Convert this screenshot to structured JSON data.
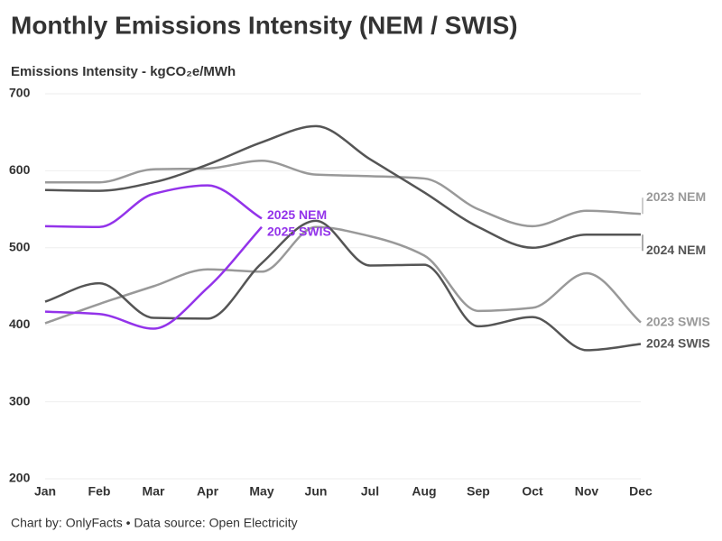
{
  "chart_data": {
    "type": "line",
    "title": "Monthly Emissions Intensity (NEM / SWIS)",
    "subtitle": "Emissions Intensity - kgCO₂e/MWh",
    "footer": "Chart by: OnlyFacts • Data source: Open Electricity",
    "categories": [
      "Jan",
      "Feb",
      "Mar",
      "Apr",
      "May",
      "Jun",
      "Jul",
      "Aug",
      "Sep",
      "Oct",
      "Nov",
      "Dec"
    ],
    "ylim": [
      200,
      700
    ],
    "yticks": [
      200,
      300,
      400,
      500,
      600,
      700
    ],
    "grid": true,
    "series": [
      {
        "name": "2023 NEM",
        "color": "#999999",
        "values": [
          585,
          585,
          602,
          603,
          613,
          595,
          593,
          590,
          550,
          528,
          548,
          544
        ]
      },
      {
        "name": "2024 NEM",
        "color": "#555555",
        "values": [
          575,
          574,
          585,
          608,
          637,
          658,
          615,
          572,
          527,
          500,
          517,
          517
        ]
      },
      {
        "name": "2023 SWIS",
        "color": "#999999",
        "values": [
          402,
          427,
          450,
          472,
          469,
          527,
          515,
          490,
          418,
          422,
          467,
          403
        ]
      },
      {
        "name": "2024 SWIS",
        "color": "#555555",
        "values": [
          430,
          454,
          409,
          408,
          480,
          535,
          477,
          478,
          398,
          410,
          367,
          375
        ]
      },
      {
        "name": "2025 NEM",
        "color": "#9333ea",
        "values": [
          528,
          527,
          570,
          581,
          538,
          null,
          null,
          null,
          null,
          null,
          null,
          null
        ]
      },
      {
        "name": "2025 SWIS",
        "color": "#9333ea",
        "values": [
          417,
          414,
          395,
          448,
          527,
          null,
          null,
          null,
          null,
          null,
          null,
          null
        ]
      }
    ]
  }
}
